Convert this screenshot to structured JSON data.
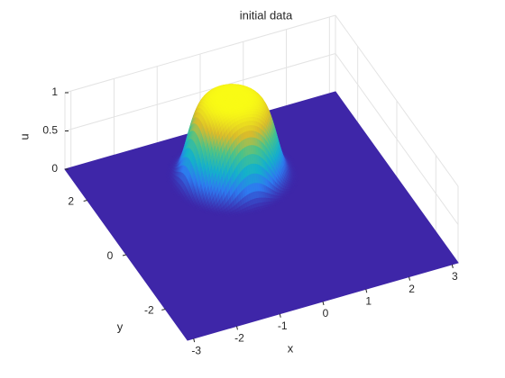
{
  "chart_data": {
    "type": "surface",
    "title": "initial data",
    "x_label": "x",
    "y_label": "y",
    "z_label": "u",
    "xlim": [
      -3.14,
      3.14
    ],
    "ylim": [
      -3.14,
      3.14
    ],
    "zlim": [
      0,
      1
    ],
    "xticks": [
      -3,
      -2,
      -1,
      0,
      1,
      2,
      3
    ],
    "yticks": [
      -2,
      0,
      2
    ],
    "zticks": [
      0,
      0.5,
      1
    ],
    "peak": {
      "x": 0,
      "y": 1.5,
      "u": 1,
      "width": 1.0
    },
    "grid": true
  }
}
